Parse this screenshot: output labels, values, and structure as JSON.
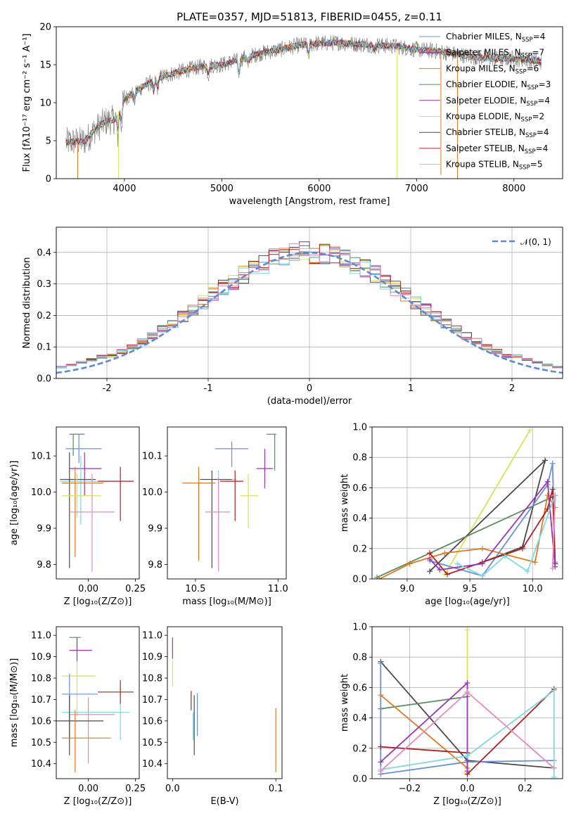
{
  "figure_title": "PLATE=0357, MJD=51813, FIBERID=0455, z=0.11",
  "colors": {
    "Chabrier MILES": "#6a8fd8",
    "Salpeter MILES": "#9a35b4",
    "Kroupa MILES": "#e07a22",
    "Chabrier ELODIE": "#5a8a60",
    "Salpeter ELODIE": "#9a35b4",
    "Kroupa ELODIE": "#d8e456",
    "Chabrier STELIB": "#4a4a4a",
    "Salpeter STELIB": "#b02020",
    "Kroupa STELIB": "#7fd8e0",
    "pink": "#e68ac0"
  },
  "chart_data": [
    {
      "id": "spectrum",
      "type": "line",
      "title": "PLATE=0357, MJD=51813, FIBERID=0455, z=0.11",
      "xlabel": "wavelength [Angstrom, rest frame]",
      "ylabel": "Flux [fλ10⁻¹⁷ erg cm⁻² s⁻¹ A⁻¹]",
      "xlim": [
        3300,
        8500
      ],
      "ylim": [
        0,
        20
      ],
      "xticks": [
        4000,
        5000,
        6000,
        7000,
        8000
      ],
      "yticks": [
        0,
        5,
        10,
        15,
        20
      ],
      "grid": false,
      "legend_position": "top-right",
      "continuum": [
        [
          3400,
          4.8
        ],
        [
          3600,
          5.0
        ],
        [
          3700,
          6.5
        ],
        [
          3800,
          7.5
        ],
        [
          3900,
          7.8
        ],
        [
          4000,
          10.5
        ],
        [
          4200,
          12.2
        ],
        [
          4400,
          13.5
        ],
        [
          4600,
          14.2
        ],
        [
          4800,
          14.8
        ],
        [
          5000,
          15.0
        ],
        [
          5200,
          15.8
        ],
        [
          5400,
          16.5
        ],
        [
          5600,
          17.0
        ],
        [
          5800,
          17.6
        ],
        [
          6000,
          17.8
        ],
        [
          6200,
          17.9
        ],
        [
          6400,
          17.7
        ],
        [
          6600,
          17.6
        ],
        [
          6800,
          17.4
        ],
        [
          7000,
          17.0
        ],
        [
          7200,
          16.8
        ],
        [
          7400,
          16.4
        ],
        [
          7600,
          16.0
        ],
        [
          7800,
          15.8
        ],
        [
          8000,
          15.8
        ],
        [
          8200,
          15.6
        ],
        [
          8280,
          15.4
        ]
      ],
      "series": [
        {
          "name": "Chabrier MILES, N",
          "sub": "SSP",
          "count": "=4",
          "color": "#6a8fd8"
        },
        {
          "name": "Salpeter MILES, N",
          "sub": "SSP",
          "count": "=7",
          "color": "#9a35b4"
        },
        {
          "name": "Kroupa MILES, N",
          "sub": "SSP",
          "count": "=6",
          "color": "#e07a22"
        },
        {
          "name": "Chabrier ELODIE, N",
          "sub": "SSP",
          "count": "=3",
          "color": "#5a8a60"
        },
        {
          "name": "Salpeter ELODIE, N",
          "sub": "SSP",
          "count": "=4",
          "color": "#9a35b4"
        },
        {
          "name": "Kroupa ELODIE, N",
          "sub": "SSP",
          "count": "=2",
          "color": "#d8e456"
        },
        {
          "name": "Chabrier STELIB, N",
          "sub": "SSP",
          "count": "=4",
          "color": "#4a4a4a"
        },
        {
          "name": "Salpeter STELIB, N",
          "sub": "SSP",
          "count": "=4",
          "color": "#b02020"
        },
        {
          "name": "Kroupa STELIB, N",
          "sub": "SSP",
          "count": "=5",
          "color": "#7fd8e0"
        }
      ]
    },
    {
      "id": "residuals",
      "type": "histogram",
      "xlabel": "(data-model)/error",
      "ylabel": "Normed distribution",
      "xlim": [
        -2.5,
        2.5
      ],
      "ylim": [
        0,
        0.48
      ],
      "xticks": [
        -2,
        -1,
        0,
        1,
        2
      ],
      "yticks": [
        0.0,
        0.1,
        0.2,
        0.3,
        0.4
      ],
      "grid": true,
      "legend_position": "top-right",
      "legend_label": "𝒩(0, 1)",
      "curve": {
        "type": "normal",
        "mean": 0,
        "sigma": 1,
        "color": "#5b8ad6",
        "style": "dashed"
      },
      "bin_width": 0.1
    },
    {
      "id": "age-vs-Z",
      "type": "errorbar",
      "xlabel": "Z [log₁₀(Z/Z⊙)]",
      "ylabel": "age  [log₁₀(age/yr)]",
      "xlim": [
        -0.17,
        0.27
      ],
      "ylim": [
        9.76,
        10.18
      ],
      "xticks": [
        0.0,
        0.25
      ],
      "xticklabels": [
        "0.00",
        "0.25"
      ],
      "yticks": [
        9.8,
        9.9,
        10.0,
        10.1
      ],
      "grid": false,
      "points": [
        {
          "x": -0.05,
          "y": 10.12,
          "xlo": -0.12,
          "xhi": 0.07,
          "ylo": 10.08,
          "yhi": 10.16,
          "c": "#6a8fd8"
        },
        {
          "x": -0.08,
          "y": 10.16,
          "xlo": -0.1,
          "xhi": -0.02,
          "ylo": 10.1,
          "yhi": 10.16,
          "c": "#5a8a60"
        },
        {
          "x": -0.02,
          "y": 10.065,
          "xlo": -0.1,
          "xhi": 0.07,
          "ylo": 9.99,
          "yhi": 10.11,
          "c": "#9a35b4"
        },
        {
          "x": -0.04,
          "y": 10.03,
          "xlo": -0.15,
          "xhi": 0.15,
          "ylo": 9.91,
          "yhi": 10.1,
          "c": "#7fd8e0"
        },
        {
          "x": -0.1,
          "y": 10.035,
          "xlo": -0.15,
          "xhi": 0.04,
          "ylo": 9.79,
          "yhi": 10.11,
          "c": "#4a4a4a"
        },
        {
          "x": 0.17,
          "y": 10.03,
          "xlo": 0.05,
          "xhi": 0.24,
          "ylo": 9.92,
          "yhi": 10.07,
          "c": "#b02020"
        },
        {
          "x": -0.07,
          "y": 10.025,
          "xlo": -0.14,
          "xhi": 0.08,
          "ylo": 9.82,
          "yhi": 10.07,
          "c": "#e07a22"
        },
        {
          "x": -0.06,
          "y": 9.99,
          "xlo": -0.14,
          "xhi": 0.07,
          "ylo": 9.93,
          "yhi": 10.05,
          "c": "#d8e456"
        },
        {
          "x": 0.02,
          "y": 9.945,
          "xlo": -0.1,
          "xhi": 0.14,
          "ylo": 9.78,
          "yhi": 10.05,
          "c": "#e68ac0"
        }
      ]
    },
    {
      "id": "age-vs-mass",
      "type": "errorbar",
      "xlabel": "mass [log₁₀(M/M⊙)]",
      "ylabel": "",
      "xlim": [
        10.33,
        11.05
      ],
      "ylim": [
        9.76,
        10.18
      ],
      "xticks": [
        10.5,
        11.0
      ],
      "xticklabels": [
        "10.5",
        "11.0"
      ],
      "yticks": [
        9.8,
        9.9,
        10.0,
        10.1
      ],
      "grid": false,
      "points": [
        {
          "x": 10.72,
          "y": 10.12,
          "xlo": 10.62,
          "xhi": 10.82,
          "ylo": 10.07,
          "yhi": 10.14,
          "c": "#6a8fd8"
        },
        {
          "x": 10.98,
          "y": 10.16,
          "xlo": 10.93,
          "xhi": 10.99,
          "ylo": 10.06,
          "yhi": 10.16,
          "c": "#5a8a60"
        },
        {
          "x": 10.92,
          "y": 10.065,
          "xlo": 10.87,
          "xhi": 10.97,
          "ylo": 10.01,
          "yhi": 10.12,
          "c": "#9a35b4"
        },
        {
          "x": 10.64,
          "y": 10.035,
          "xlo": 10.52,
          "xhi": 10.75,
          "ylo": 9.92,
          "yhi": 10.06,
          "c": "#7fd8e0"
        },
        {
          "x": 10.6,
          "y": 10.035,
          "xlo": 10.53,
          "xhi": 10.72,
          "ylo": 9.79,
          "yhi": 10.06,
          "c": "#4a4a4a"
        },
        {
          "x": 10.74,
          "y": 10.03,
          "xlo": 10.65,
          "xhi": 10.79,
          "ylo": 9.92,
          "yhi": 10.06,
          "c": "#b02020"
        },
        {
          "x": 10.52,
          "y": 10.025,
          "xlo": 10.42,
          "xhi": 10.62,
          "ylo": 9.81,
          "yhi": 10.07,
          "c": "#e07a22"
        },
        {
          "x": 10.82,
          "y": 9.99,
          "xlo": 10.77,
          "xhi": 10.88,
          "ylo": 9.9,
          "yhi": 10.05,
          "c": "#d8e456"
        },
        {
          "x": 10.64,
          "y": 9.945,
          "xlo": 10.56,
          "xhi": 10.71,
          "ylo": 9.78,
          "yhi": 10.04,
          "c": "#e68ac0"
        }
      ]
    },
    {
      "id": "mass-weight-vs-age",
      "type": "line",
      "xlabel": "age  [log₁₀(age/yr)]",
      "ylabel": "mass weight",
      "xlim": [
        8.72,
        10.24
      ],
      "ylim": [
        0,
        1.0
      ],
      "xticks": [
        9.0,
        9.5,
        10.0
      ],
      "xticklabels": [
        "9.0",
        "9.5",
        "10.0"
      ],
      "yticks": [
        0.0,
        0.2,
        0.4,
        0.6,
        0.8,
        1.0
      ],
      "grid": true,
      "series": [
        {
          "c": "#d8e456",
          "pts": [
            [
              9.3,
              0.03
            ],
            [
              9.98,
              0.98
            ]
          ]
        },
        {
          "c": "#4a4a4a",
          "pts": [
            [
              9.18,
              0.05
            ],
            [
              10.1,
              0.78
            ],
            [
              9.92,
              0.21
            ],
            [
              9.6,
              0.11
            ]
          ]
        },
        {
          "c": "#5a8a60",
          "pts": [
            [
              8.76,
              0.01
            ],
            [
              10.16,
              0.54
            ],
            [
              10.18,
              0.55
            ]
          ]
        },
        {
          "c": "#6a8fd8",
          "pts": [
            [
              9.18,
              0.12
            ],
            [
              9.6,
              0.02
            ],
            [
              10.12,
              0.62
            ],
            [
              10.16,
              0.76
            ],
            [
              10.18,
              0.11
            ]
          ]
        },
        {
          "c": "#e07a22",
          "pts": [
            [
              8.78,
              0.0
            ],
            [
              9.02,
              0.1
            ],
            [
              9.3,
              0.17
            ],
            [
              9.6,
              0.2
            ],
            [
              10.02,
              0.11
            ],
            [
              10.12,
              0.55
            ],
            [
              10.18,
              0.47
            ]
          ]
        },
        {
          "c": "#b02020",
          "pts": [
            [
              9.18,
              0.17
            ],
            [
              9.32,
              0.03
            ],
            [
              9.92,
              0.2
            ],
            [
              10.12,
              0.46
            ],
            [
              10.16,
              0.59
            ],
            [
              10.18,
              0.1
            ]
          ]
        },
        {
          "c": "#9a35b4",
          "pts": [
            [
              9.18,
              0.13
            ],
            [
              9.26,
              0.06
            ],
            [
              9.6,
              0.1
            ],
            [
              10.12,
              0.64
            ],
            [
              10.18,
              0.08
            ]
          ]
        },
        {
          "c": "#7fd8e0",
          "pts": [
            [
              9.4,
              0.1
            ],
            [
              9.6,
              0.02
            ],
            [
              9.78,
              0.15
            ],
            [
              9.96,
              0.05
            ],
            [
              10.18,
              0.55
            ]
          ]
        },
        {
          "c": "#e68ac0",
          "pts": [
            [
              10.16,
              0.07
            ],
            [
              10.18,
              0.55
            ]
          ]
        }
      ]
    },
    {
      "id": "mass-vs-Z",
      "type": "errorbar",
      "xlabel": "Z [log₁₀(Z/Z⊙)]",
      "ylabel": "mass [log₁₀(M/M⊙)]",
      "xlim": [
        -0.17,
        0.27
      ],
      "ylim": [
        10.33,
        11.04
      ],
      "xticks": [
        0.0,
        0.25
      ],
      "xticklabels": [
        "0.00",
        "0.25"
      ],
      "yticks": [
        10.4,
        10.5,
        10.6,
        10.7,
        10.8,
        10.9,
        11.0
      ],
      "grid": false,
      "points": [
        {
          "x": -0.06,
          "y": 10.99,
          "xlo": -0.1,
          "xhi": -0.04,
          "ylo": 10.93,
          "yhi": 10.99,
          "c": "#5a8a60"
        },
        {
          "x": -0.06,
          "y": 10.93,
          "xlo": -0.1,
          "xhi": 0.02,
          "ylo": 10.87,
          "yhi": 10.99,
          "c": "#9a35b4"
        },
        {
          "x": -0.06,
          "y": 10.81,
          "xlo": -0.14,
          "xhi": 0.04,
          "ylo": 10.62,
          "yhi": 10.88,
          "c": "#d8e456"
        },
        {
          "x": 0.17,
          "y": 10.735,
          "xlo": 0.05,
          "xhi": 0.24,
          "ylo": 10.68,
          "yhi": 10.79,
          "c": "#b02020"
        },
        {
          "x": -0.1,
          "y": 10.725,
          "xlo": -0.14,
          "xhi": 0.05,
          "ylo": 10.52,
          "yhi": 10.82,
          "c": "#6a8fd8"
        },
        {
          "x": 0.17,
          "y": 10.64,
          "xlo": -0.14,
          "xhi": 0.22,
          "ylo": 10.51,
          "yhi": 10.68,
          "c": "#7fd8e0"
        },
        {
          "x": 0.0,
          "y": 10.63,
          "xlo": -0.1,
          "xhi": 0.14,
          "ylo": 10.4,
          "yhi": 10.71,
          "c": "#e68ac0"
        },
        {
          "x": -0.1,
          "y": 10.6,
          "xlo": -0.17,
          "xhi": 0.08,
          "ylo": 10.44,
          "yhi": 10.72,
          "c": "#4a4a4a"
        },
        {
          "x": -0.07,
          "y": 10.52,
          "xlo": -0.14,
          "xhi": 0.12,
          "ylo": 10.36,
          "yhi": 10.65,
          "c": "#e07a22"
        }
      ]
    },
    {
      "id": "mass-vs-ebv",
      "type": "errorbar",
      "xlabel": "E(B-V)",
      "ylabel": "",
      "xlim": [
        -0.005,
        0.106
      ],
      "ylim": [
        10.33,
        11.04
      ],
      "xticks": [
        0.0,
        0.1
      ],
      "xticklabels": [
        "0.0",
        "0.1"
      ],
      "yticks": [
        10.4,
        10.5,
        10.6,
        10.7,
        10.8,
        10.9,
        11.0
      ],
      "grid": false,
      "points": [
        {
          "x": 0.0,
          "y": 10.95,
          "ylo": 10.89,
          "yhi": 10.99,
          "c": "#9a35b4"
        },
        {
          "x": 0.0,
          "y": 10.82,
          "ylo": 10.76,
          "yhi": 10.88,
          "c": "#d8e456"
        },
        {
          "x": 0.018,
          "y": 10.7,
          "ylo": 10.65,
          "yhi": 10.74,
          "c": "#b02020"
        },
        {
          "x": 0.021,
          "y": 10.6,
          "ylo": 10.44,
          "yhi": 10.72,
          "c": "#4a4a4a"
        },
        {
          "x": 0.02,
          "y": 10.58,
          "ylo": 10.51,
          "yhi": 10.64,
          "c": "#7fd8e0"
        },
        {
          "x": 0.024,
          "y": 10.63,
          "ylo": 10.53,
          "yhi": 10.73,
          "c": "#6a8fd8"
        },
        {
          "x": 0.1,
          "y": 10.52,
          "ylo": 10.36,
          "yhi": 10.66,
          "c": "#e07a22"
        }
      ]
    },
    {
      "id": "mass-weight-vs-Z",
      "type": "line",
      "xlabel": "Z [log₁₀(Z/Z⊙)]",
      "ylabel": "mass weight",
      "xlim": [
        -0.33,
        0.33
      ],
      "ylim": [
        0,
        1.0
      ],
      "xticks": [
        -0.2,
        0.0,
        0.2
      ],
      "xticklabels": [
        "−0.2",
        "0.0",
        "0.2"
      ],
      "yticks": [
        0.0,
        0.2,
        0.4,
        0.6,
        0.8,
        1.0
      ],
      "grid": true,
      "series": [
        {
          "c": "#d8e456",
          "pts": [
            [
              0.0,
              0.04
            ],
            [
              0.0,
              0.98
            ]
          ]
        },
        {
          "c": "#4a4a4a",
          "pts": [
            [
              -0.3,
              0.77
            ],
            [
              0.0,
              0.12
            ],
            [
              0.3,
              0.07
            ]
          ]
        },
        {
          "c": "#5a8a60",
          "pts": [
            [
              -0.3,
              0.46
            ],
            [
              0.0,
              0.54
            ]
          ]
        },
        {
          "c": "#6a8fd8",
          "pts": [
            [
              -0.3,
              0.76
            ],
            [
              -0.3,
              0.03
            ],
            [
              0.0,
              0.11
            ],
            [
              0.3,
              0.12
            ]
          ]
        },
        {
          "c": "#e07a22",
          "pts": [
            [
              -0.3,
              0.55
            ],
            [
              0.0,
              0.07
            ]
          ]
        },
        {
          "c": "#b02020",
          "pts": [
            [
              -0.3,
              0.21
            ],
            [
              0.0,
              0.17
            ],
            [
              0.0,
              0.03
            ],
            [
              0.3,
              0.59
            ]
          ]
        },
        {
          "c": "#9a35b4",
          "pts": [
            [
              -0.3,
              0.11
            ],
            [
              0.0,
              0.63
            ],
            [
              0.0,
              0.05
            ]
          ]
        },
        {
          "c": "#7fd8e0",
          "pts": [
            [
              -0.3,
              0.06
            ],
            [
              0.0,
              0.15
            ],
            [
              0.3,
              0.58
            ],
            [
              0.3,
              0.01
            ]
          ]
        },
        {
          "c": "#e68ac0",
          "pts": [
            [
              -0.3,
              0.05
            ],
            [
              0.0,
              0.57
            ],
            [
              0.3,
              0.07
            ]
          ]
        }
      ]
    }
  ]
}
